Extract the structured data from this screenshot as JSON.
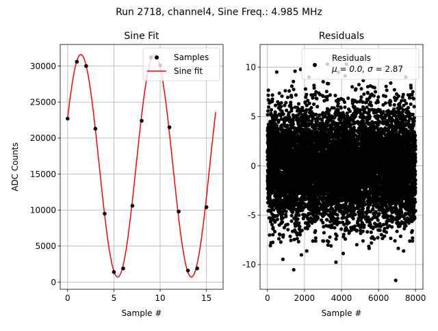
{
  "figure": {
    "suptitle": "Run 2718, channel4, Sine Freq.: 4.985 MHz"
  },
  "chart_data": [
    {
      "type": "scatter",
      "title": "Sine Fit",
      "xlabel": "Sample #",
      "ylabel": "ADC Counts",
      "xlim": [
        -0.8,
        16.8
      ],
      "ylim": [
        -1000,
        33000
      ],
      "xticks": [
        0,
        5,
        10,
        15
      ],
      "yticks": [
        0,
        5000,
        10000,
        15000,
        20000,
        25000,
        30000
      ],
      "grid": true,
      "legend_position": "upper right",
      "series": [
        {
          "name": "Samples",
          "kind": "scatter",
          "color": "#000000",
          "x": [
            0,
            1,
            2,
            3,
            4,
            5,
            6,
            7,
            8,
            9,
            10,
            11,
            12,
            13,
            14,
            15
          ],
          "y": [
            22700,
            30600,
            30000,
            21300,
            9500,
            1400,
            1900,
            10600,
            22400,
            31200,
            30100,
            21500,
            9800,
            1600,
            1900,
            10400
          ]
        },
        {
          "name": "Sine fit",
          "kind": "line",
          "color": "#ff0000",
          "model": {
            "offset": 16150,
            "amplitude": 15450,
            "period": 7.96,
            "phase_deg": 25.3
          },
          "x_range": [
            0,
            16
          ]
        }
      ]
    },
    {
      "type": "scatter",
      "title": "Residuals",
      "xlabel": "Sample #",
      "ylabel": "",
      "xlim": [
        -400,
        8400
      ],
      "ylim": [
        -12.5,
        12.3
      ],
      "xticks": [
        0,
        2000,
        4000,
        6000,
        8000
      ],
      "yticks": [
        -10,
        -5,
        0,
        5,
        10
      ],
      "grid": true,
      "legend_position": "upper right",
      "series": [
        {
          "name": "Residuals",
          "legend_stats": "μ = 0.0, σ = 2.87",
          "kind": "scatter",
          "color": "#000000",
          "n_points": 8000,
          "x_range": [
            0,
            7999
          ],
          "mean": 0.0,
          "std": 2.87,
          "min": -11.6,
          "max": 10.3
        }
      ]
    }
  ],
  "legends": {
    "left": {
      "samples_label": "Samples",
      "fit_label": "Sine fit"
    },
    "right": {
      "label": "Residuals",
      "stats_prefix": "μ = 0.0, ",
      "stats_sigma": "σ",
      "stats_suffix": " = 2.87"
    }
  }
}
